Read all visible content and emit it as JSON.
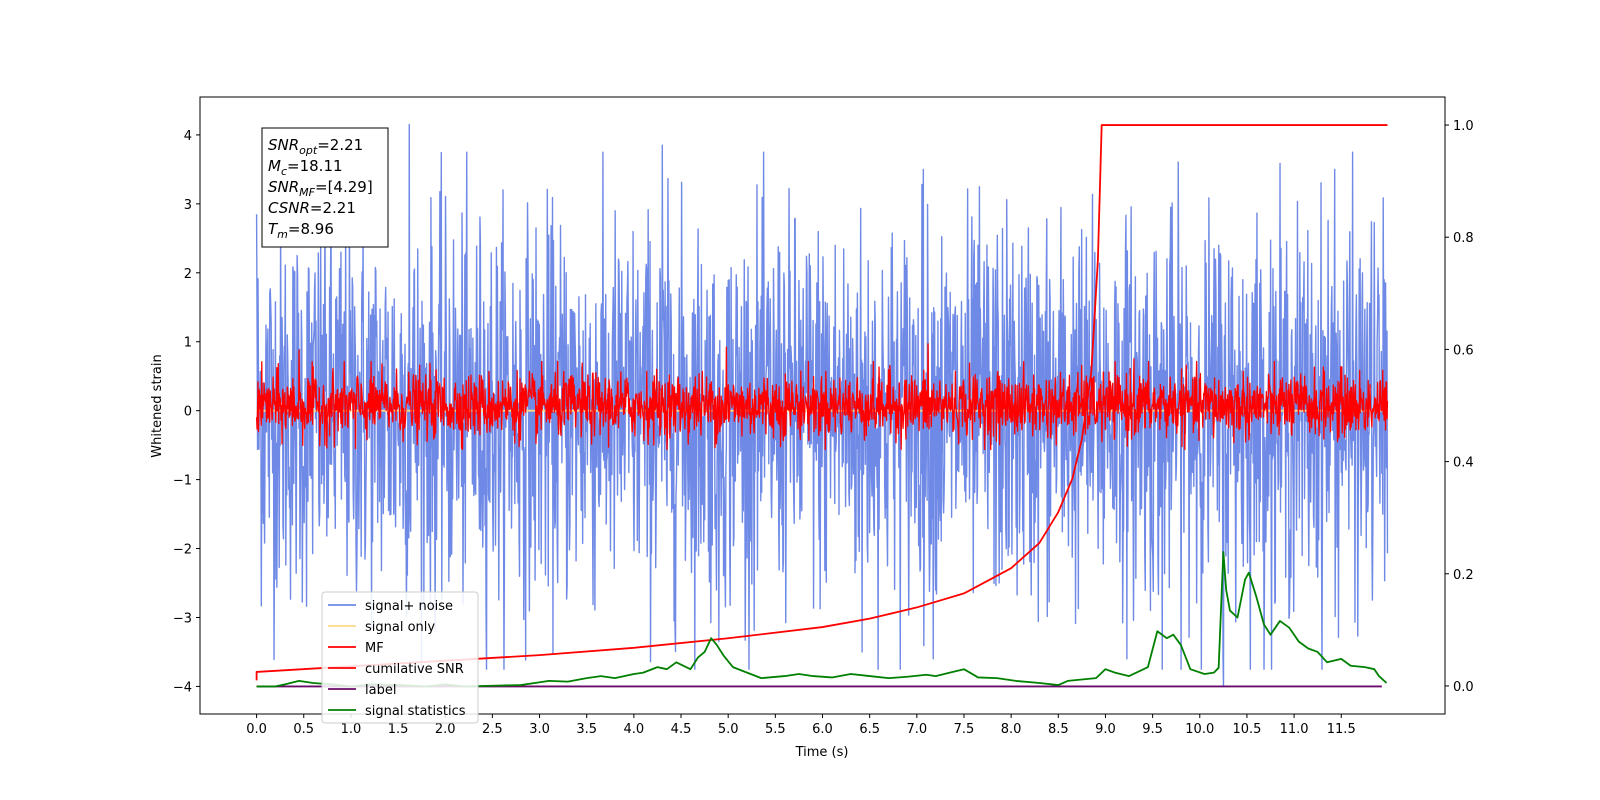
{
  "chart_data": {
    "type": "line",
    "title": "",
    "xlabel": "Time (s)",
    "ylabel": "Whitened strain",
    "y2label": "",
    "xlim": [
      -0.6,
      12.6
    ],
    "ylim": [
      -4.4,
      4.55
    ],
    "y2lim": [
      -0.05,
      1.05
    ],
    "xticks": [
      0.0,
      0.5,
      1.0,
      1.5,
      2.0,
      2.5,
      3.0,
      3.5,
      4.0,
      4.5,
      5.0,
      5.5,
      6.0,
      6.5,
      7.0,
      7.5,
      8.0,
      8.5,
      9.0,
      9.5,
      10.0,
      10.5,
      11.0,
      11.5
    ],
    "xtick_labels": [
      "0.0",
      "0.5",
      "1.0",
      "1.5",
      "2.0",
      "2.5",
      "3.0",
      "3.5",
      "4.0",
      "4.5",
      "5.0",
      "5.5",
      "6.0",
      "6.5",
      "7.0",
      "7.5",
      "8.0",
      "8.5",
      "9.0",
      "9.5",
      "10.0",
      "10.5",
      "11.0",
      "11.5"
    ],
    "yticks": [
      -4,
      -3,
      -2,
      -1,
      0,
      1,
      2,
      3,
      4
    ],
    "ytick_labels": [
      "−4",
      "−3",
      "−2",
      "−1",
      "0",
      "1",
      "2",
      "3",
      "4"
    ],
    "y2ticks": [
      0.0,
      0.2,
      0.4,
      0.6,
      0.8,
      1.0
    ],
    "y2tick_labels": [
      "0.0",
      "0.2",
      "0.4",
      "0.6",
      "0.8",
      "1.0"
    ],
    "grid": false,
    "legend_position": "bottom-left",
    "series": [
      {
        "name": "signal+ noise",
        "color": "#6f8ae6",
        "axis": "left",
        "kind": "noise",
        "x_range": [
          0.0,
          11.99
        ],
        "typical_range": [
          -2.5,
          2.5
        ],
        "peak_points": [
          [
            0.0,
            2.85
          ],
          [
            1.62,
            4.15
          ],
          [
            4.3,
            3.85
          ],
          [
            7.07,
            3.5
          ],
          [
            10.25,
            3.9
          ],
          [
            11.43,
            3.5
          ],
          [
            10.25,
            -4.0
          ],
          [
            6.42,
            -3.5
          ],
          [
            9.6,
            -3.75
          ],
          [
            4.9,
            -3.35
          ]
        ]
      },
      {
        "name": "signal only",
        "color": "#fdd98a",
        "axis": "left",
        "kind": "flat",
        "values": [
          [
            0.0,
            0.0
          ],
          [
            11.99,
            0.0
          ]
        ]
      },
      {
        "name": "MF",
        "color": "#ff0000",
        "axis": "left",
        "kind": "noise",
        "x_range": [
          0.0,
          11.99
        ],
        "typical_range": [
          -0.35,
          0.5
        ],
        "peak_points": [
          [
            0.45,
            0.88
          ],
          [
            4.98,
            0.92
          ],
          [
            7.12,
            0.97
          ],
          [
            9.3,
            0.75
          ],
          [
            1.05,
            -0.55
          ]
        ]
      },
      {
        "name": "cumilative SNR",
        "color": "#ff0000",
        "axis": "right",
        "kind": "curve",
        "x": [
          0.0,
          0.0,
          1.0,
          2.0,
          3.0,
          4.0,
          5.0,
          6.0,
          6.5,
          7.0,
          7.5,
          8.0,
          8.3,
          8.5,
          8.65,
          8.75,
          8.85,
          8.92,
          8.96,
          8.97,
          9.5,
          10.5,
          11.99
        ],
        "values": [
          0.01,
          0.025,
          0.035,
          0.045,
          0.055,
          0.068,
          0.085,
          0.105,
          0.12,
          0.14,
          0.165,
          0.21,
          0.255,
          0.31,
          0.37,
          0.44,
          0.56,
          0.76,
          1.0,
          1.0,
          1.0,
          1.0,
          1.0
        ]
      },
      {
        "name": "label",
        "color": "#6a0a6a",
        "axis": "left",
        "kind": "flat",
        "values": [
          [
            0.0,
            -4.0
          ],
          [
            11.93,
            -4.0
          ]
        ]
      },
      {
        "name": "signal statistics",
        "color": "#008000",
        "axis": "left",
        "kind": "curve",
        "x": [
          0.0,
          0.2,
          0.3,
          0.45,
          0.6,
          0.8,
          1.0,
          1.2,
          1.5,
          1.8,
          2.0,
          2.2,
          2.5,
          2.8,
          2.95,
          3.1,
          3.3,
          3.5,
          3.65,
          3.8,
          4.0,
          4.1,
          4.25,
          4.35,
          4.45,
          4.6,
          4.68,
          4.75,
          4.82,
          4.88,
          4.95,
          5.05,
          5.2,
          5.35,
          5.6,
          5.75,
          5.9,
          6.1,
          6.3,
          6.5,
          6.7,
          6.9,
          7.1,
          7.2,
          7.35,
          7.5,
          7.65,
          7.85,
          8.05,
          8.3,
          8.5,
          8.6,
          8.75,
          8.9,
          9.0,
          9.1,
          9.25,
          9.45,
          9.55,
          9.65,
          9.72,
          9.8,
          9.9,
          10.05,
          10.15,
          10.2,
          10.25,
          10.28,
          10.32,
          10.4,
          10.48,
          10.52,
          10.6,
          10.68,
          10.75,
          10.85,
          10.95,
          11.05,
          11.15,
          11.25,
          11.35,
          11.5,
          11.6,
          11.75,
          11.85,
          11.9,
          11.98
        ],
        "values": [
          -4.0,
          -4.0,
          -3.97,
          -3.92,
          -3.95,
          -3.97,
          -4.0,
          -3.97,
          -3.98,
          -4.0,
          -3.97,
          -4.0,
          -3.99,
          -3.98,
          -3.95,
          -3.92,
          -3.93,
          -3.88,
          -3.85,
          -3.88,
          -3.82,
          -3.8,
          -3.72,
          -3.75,
          -3.65,
          -3.75,
          -3.58,
          -3.5,
          -3.3,
          -3.4,
          -3.55,
          -3.72,
          -3.8,
          -3.88,
          -3.85,
          -3.82,
          -3.85,
          -3.87,
          -3.82,
          -3.85,
          -3.88,
          -3.86,
          -3.83,
          -3.85,
          -3.8,
          -3.75,
          -3.87,
          -3.88,
          -3.92,
          -3.95,
          -3.98,
          -3.92,
          -3.9,
          -3.88,
          -3.75,
          -3.8,
          -3.85,
          -3.72,
          -3.2,
          -3.3,
          -3.25,
          -3.4,
          -3.75,
          -3.82,
          -3.8,
          -3.73,
          -2.05,
          -2.6,
          -2.9,
          -3.0,
          -2.45,
          -2.35,
          -2.7,
          -3.1,
          -3.25,
          -3.05,
          -3.15,
          -3.35,
          -3.45,
          -3.5,
          -3.65,
          -3.6,
          -3.7,
          -3.72,
          -3.75,
          -3.85,
          -3.95
        ]
      }
    ],
    "annotations": [
      {
        "main": "SNR",
        "sub": "opt",
        "rest": "=2.21"
      },
      {
        "main": "M",
        "sub": "c",
        "rest": "=18.11"
      },
      {
        "main": "SNR",
        "sub": "MF",
        "rest": "=[4.29]"
      },
      {
        "main": "CSNR",
        "sub": "",
        "rest": "=2.21"
      },
      {
        "main": "T",
        "sub": "m",
        "rest": "=8.96"
      }
    ]
  }
}
